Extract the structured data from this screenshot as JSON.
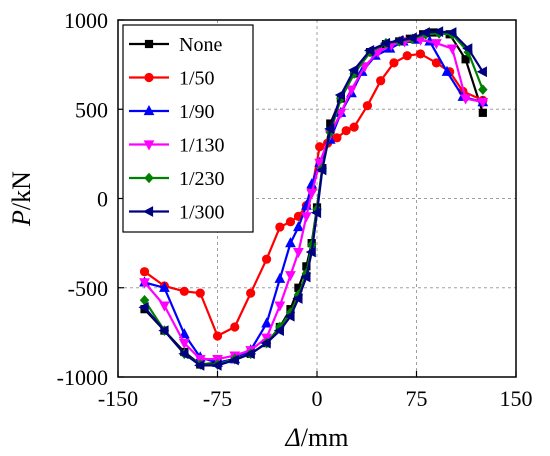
{
  "chart_data": {
    "type": "line",
    "title": "",
    "xlabel_italic": "Δ",
    "xlabel_unit": "/mm",
    "ylabel_italic": "P",
    "ylabel_unit": "/kN",
    "xlim": [
      -150,
      150
    ],
    "ylim": [
      -1000,
      1000
    ],
    "xticks": [
      -150,
      -75,
      0,
      75,
      150
    ],
    "yticks": [
      -1000,
      -500,
      0,
      500,
      1000
    ],
    "grid": true,
    "legend_position": "top-left",
    "series": [
      {
        "name": "None",
        "color": "#000000",
        "marker": "square",
        "points": [
          [
            -130,
            -620
          ],
          [
            -115,
            -740
          ],
          [
            -100,
            -860
          ],
          [
            -88,
            -930
          ],
          [
            -75,
            -920
          ],
          [
            -62,
            -900
          ],
          [
            -50,
            -870
          ],
          [
            -38,
            -810
          ],
          [
            -28,
            -720
          ],
          [
            -20,
            -620
          ],
          [
            -14,
            -500
          ],
          [
            -8,
            -380
          ],
          [
            -4,
            -250
          ],
          [
            0,
            -50
          ],
          [
            4,
            170
          ],
          [
            10,
            420
          ],
          [
            18,
            560
          ],
          [
            28,
            700
          ],
          [
            40,
            820
          ],
          [
            52,
            865
          ],
          [
            62,
            880
          ],
          [
            70,
            895
          ],
          [
            80,
            920
          ],
          [
            88,
            930
          ],
          [
            100,
            920
          ],
          [
            112,
            780
          ],
          [
            125,
            480
          ]
        ]
      },
      {
        "name": "1/50",
        "color": "#ff0000",
        "marker": "circle",
        "points": [
          [
            -130,
            -410
          ],
          [
            -115,
            -490
          ],
          [
            -100,
            -520
          ],
          [
            -88,
            -530
          ],
          [
            -75,
            -770
          ],
          [
            -62,
            -720
          ],
          [
            -50,
            -530
          ],
          [
            -38,
            -340
          ],
          [
            -28,
            -160
          ],
          [
            -20,
            -130
          ],
          [
            -14,
            -100
          ],
          [
            -8,
            -40
          ],
          [
            -4,
            50
          ],
          [
            2,
            290
          ],
          [
            8,
            310
          ],
          [
            15,
            340
          ],
          [
            22,
            380
          ],
          [
            28,
            400
          ],
          [
            38,
            520
          ],
          [
            48,
            660
          ],
          [
            58,
            760
          ],
          [
            68,
            800
          ],
          [
            78,
            810
          ],
          [
            90,
            760
          ],
          [
            100,
            710
          ],
          [
            110,
            600
          ],
          [
            125,
            550
          ]
        ]
      },
      {
        "name": "1/90",
        "color": "#0000ff",
        "marker": "triangle-up",
        "points": [
          [
            -130,
            -470
          ],
          [
            -115,
            -500
          ],
          [
            -100,
            -760
          ],
          [
            -88,
            -890
          ],
          [
            -75,
            -920
          ],
          [
            -62,
            -900
          ],
          [
            -50,
            -850
          ],
          [
            -38,
            -700
          ],
          [
            -28,
            -450
          ],
          [
            -20,
            -250
          ],
          [
            -14,
            -160
          ],
          [
            -8,
            -40
          ],
          [
            -4,
            80
          ],
          [
            2,
            200
          ],
          [
            10,
            330
          ],
          [
            18,
            480
          ],
          [
            26,
            590
          ],
          [
            34,
            710
          ],
          [
            44,
            800
          ],
          [
            55,
            840
          ],
          [
            65,
            880
          ],
          [
            75,
            890
          ],
          [
            85,
            880
          ],
          [
            98,
            710
          ],
          [
            110,
            570
          ],
          [
            125,
            540
          ]
        ]
      },
      {
        "name": "1/130",
        "color": "#ff00ff",
        "marker": "triangle-down",
        "points": [
          [
            -130,
            -470
          ],
          [
            -115,
            -600
          ],
          [
            -100,
            -810
          ],
          [
            -88,
            -900
          ],
          [
            -75,
            -900
          ],
          [
            -62,
            -880
          ],
          [
            -50,
            -850
          ],
          [
            -38,
            -780
          ],
          [
            -28,
            -600
          ],
          [
            -20,
            -430
          ],
          [
            -14,
            -300
          ],
          [
            -8,
            -100
          ],
          [
            -4,
            30
          ],
          [
            2,
            200
          ],
          [
            10,
            360
          ],
          [
            18,
            480
          ],
          [
            26,
            610
          ],
          [
            36,
            740
          ],
          [
            46,
            820
          ],
          [
            56,
            860
          ],
          [
            66,
            880
          ],
          [
            78,
            890
          ],
          [
            90,
            870
          ],
          [
            102,
            840
          ],
          [
            112,
            560
          ],
          [
            125,
            540
          ]
        ]
      },
      {
        "name": "1/230",
        "color": "#008000",
        "marker": "diamond",
        "points": [
          [
            -130,
            -570
          ],
          [
            -115,
            -740
          ],
          [
            -100,
            -870
          ],
          [
            -88,
            -930
          ],
          [
            -75,
            -930
          ],
          [
            -62,
            -900
          ],
          [
            -50,
            -870
          ],
          [
            -38,
            -810
          ],
          [
            -28,
            -720
          ],
          [
            -20,
            -640
          ],
          [
            -14,
            -540
          ],
          [
            -8,
            -420
          ],
          [
            -4,
            -260
          ],
          [
            0,
            -60
          ],
          [
            4,
            170
          ],
          [
            10,
            370
          ],
          [
            18,
            560
          ],
          [
            28,
            700
          ],
          [
            40,
            820
          ],
          [
            52,
            870
          ],
          [
            62,
            880
          ],
          [
            72,
            895
          ],
          [
            82,
            920
          ],
          [
            92,
            925
          ],
          [
            102,
            920
          ],
          [
            114,
            820
          ],
          [
            125,
            610
          ]
        ]
      },
      {
        "name": "1/300",
        "color": "#000080",
        "marker": "triangle-left",
        "points": [
          [
            -130,
            -610
          ],
          [
            -115,
            -740
          ],
          [
            -100,
            -870
          ],
          [
            -88,
            -935
          ],
          [
            -75,
            -935
          ],
          [
            -62,
            -905
          ],
          [
            -50,
            -870
          ],
          [
            -38,
            -810
          ],
          [
            -28,
            -740
          ],
          [
            -20,
            -660
          ],
          [
            -14,
            -560
          ],
          [
            -8,
            -440
          ],
          [
            -4,
            -300
          ],
          [
            0,
            -80
          ],
          [
            4,
            160
          ],
          [
            10,
            390
          ],
          [
            18,
            580
          ],
          [
            28,
            720
          ],
          [
            40,
            830
          ],
          [
            52,
            870
          ],
          [
            62,
            885
          ],
          [
            72,
            900
          ],
          [
            82,
            930
          ],
          [
            92,
            935
          ],
          [
            102,
            930
          ],
          [
            114,
            840
          ],
          [
            125,
            710
          ]
        ]
      }
    ]
  }
}
